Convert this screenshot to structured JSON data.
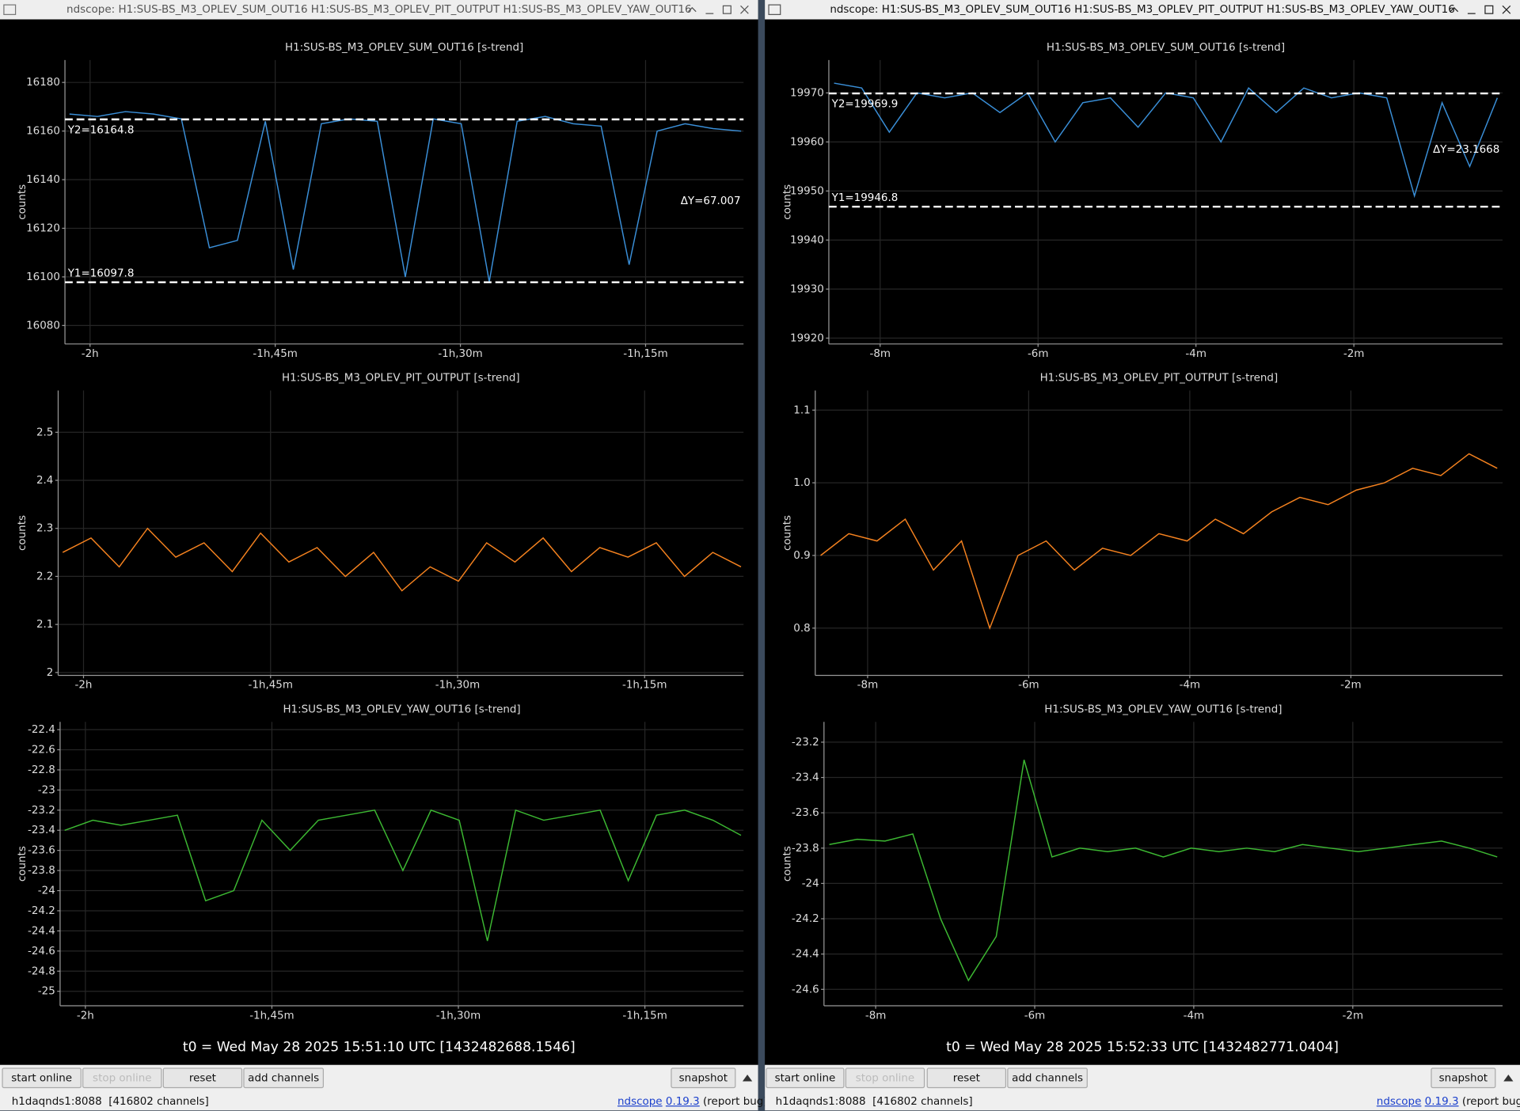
{
  "windows": [
    {
      "title": "ndscope: H1:SUS-BS_M3_OPLEV_SUM_OUT16 H1:SUS-BS_M3_OPLEV_PIT_OUTPUT H1:SUS-BS_M3_OPLEV_YAW_OUT16",
      "plots": [
        {
          "type": "line",
          "title": "H1:SUS-BS_M3_OPLEV_SUM_OUT16 [s-trend]",
          "ylabel": "counts",
          "grid": true,
          "x": [
            -7300,
            -7164,
            -7028,
            -6892,
            -6756,
            -6620,
            -6484,
            -6348,
            -6212,
            -6076,
            -5940,
            -5804,
            -5668,
            -5532,
            -5396,
            -5260,
            -5124,
            -4988,
            -4852,
            -4716,
            -4580,
            -4444,
            -4308,
            -4172,
            -4036
          ],
          "series": [
            {
              "color": "#3a8fd8",
              "values": [
                16167,
                16166,
                16168,
                16167,
                16165,
                16112,
                16115,
                16164,
                16103,
                16163,
                16165,
                16164,
                16100,
                16165,
                16163,
                16098,
                16164,
                16166,
                16163,
                16162,
                16105,
                16160,
                16163,
                16161,
                16160
              ]
            }
          ],
          "xlim": [
            -7322,
            -4024
          ],
          "xticks": [
            {
              "value": -7200,
              "label": "-2h"
            },
            {
              "value": -6300,
              "label": "-1h,45m"
            },
            {
              "value": -5400,
              "label": "-1h,30m"
            },
            {
              "value": -4500,
              "label": "-1h,15m"
            }
          ],
          "ylim": [
            16072.4,
            16189.2
          ],
          "yticks": [
            16080,
            16100,
            16120,
            16140,
            16160,
            16180
          ],
          "cursors": [
            {
              "label": "Y1=16097.8",
              "value": 16097.8
            },
            {
              "label": "Y2=16164.8",
              "value": 16164.8
            }
          ],
          "delta": "ΔY=67.007"
        },
        {
          "type": "line",
          "title": "H1:SUS-BS_M3_OPLEV_PIT_OUTPUT [s-trend]",
          "ylabel": "counts",
          "grid": true,
          "x": [
            -7300,
            -7164,
            -7028,
            -6892,
            -6756,
            -6620,
            -6484,
            -6348,
            -6212,
            -6076,
            -5940,
            -5804,
            -5668,
            -5532,
            -5396,
            -5260,
            -5124,
            -4988,
            -4852,
            -4716,
            -4580,
            -4444,
            -4308,
            -4172,
            -4036
          ],
          "series": [
            {
              "color": "#f5821f",
              "values": [
                2.25,
                2.28,
                2.22,
                2.3,
                2.24,
                2.27,
                2.21,
                2.29,
                2.23,
                2.26,
                2.2,
                2.25,
                2.17,
                2.22,
                2.19,
                2.27,
                2.23,
                2.28,
                2.21,
                2.26,
                2.24,
                2.27,
                2.2,
                2.25,
                2.22
              ]
            }
          ],
          "xlim": [
            -7322,
            -4024
          ],
          "xticks": [
            {
              "value": -7200,
              "label": "-2h"
            },
            {
              "value": -6300,
              "label": "-1h,45m"
            },
            {
              "value": -5400,
              "label": "-1h,30m"
            },
            {
              "value": -4500,
              "label": "-1h,15m"
            }
          ],
          "ylim": [
            1.994,
            2.587
          ],
          "yticks": [
            2,
            2.1,
            2.2,
            2.3,
            2.4,
            2.5
          ]
        },
        {
          "type": "line",
          "title": "H1:SUS-BS_M3_OPLEV_YAW_OUT16 [s-trend]",
          "ylabel": "counts",
          "grid": true,
          "x": [
            -7300,
            -7164,
            -7028,
            -6892,
            -6756,
            -6620,
            -6484,
            -6348,
            -6212,
            -6076,
            -5940,
            -5804,
            -5668,
            -5532,
            -5396,
            -5260,
            -5124,
            -4988,
            -4852,
            -4716,
            -4580,
            -4444,
            -4308,
            -4172,
            -4036
          ],
          "series": [
            {
              "color": "#3cb832",
              "values": [
                -23.4,
                -23.3,
                -23.35,
                -23.3,
                -23.25,
                -24.1,
                -24.0,
                -23.3,
                -23.6,
                -23.3,
                -23.25,
                -23.2,
                -23.8,
                -23.2,
                -23.3,
                -24.5,
                -23.2,
                -23.3,
                -23.25,
                -23.2,
                -23.9,
                -23.25,
                -23.2,
                -23.3,
                -23.45
              ]
            }
          ],
          "xlim": [
            -7322,
            -4024
          ],
          "xticks": [
            {
              "value": -7200,
              "label": "-2h"
            },
            {
              "value": -6300,
              "label": "-1h,45m"
            },
            {
              "value": -5400,
              "label": "-1h,30m"
            },
            {
              "value": -4500,
              "label": "-1h,15m"
            }
          ],
          "ylim": [
            -25.144,
            -22.323
          ],
          "yticks": [
            -22.4,
            -22.6,
            -22.8,
            -23,
            -23.2,
            -23.4,
            -23.6,
            -23.8,
            -24,
            -24.2,
            -24.4,
            -24.6,
            -24.8,
            -25
          ]
        }
      ],
      "t0": "t0 = Wed May 28 2025 15:51:10 UTC [1432482688.1546]",
      "buttons": [
        "start online",
        "stop online",
        "reset",
        "add channels",
        "snapshot"
      ],
      "status": "h1daqnds1:8088  [416802 channels]",
      "app": "ndscope",
      "version": "0.19.3",
      "report": "(report bug)"
    },
    {
      "title": "ndscope: H1:SUS-BS_M3_OPLEV_SUM_OUT16 H1:SUS-BS_M3_OPLEV_PIT_OUTPUT H1:SUS-BS_M3_OPLEV_YAW_OUT16",
      "plots": [
        {
          "type": "line",
          "title": "H1:SUS-BS_M3_OPLEV_SUM_OUT16 [s-trend]",
          "ylabel": "counts",
          "grid": true,
          "x": [
            -515,
            -494,
            -473,
            -452,
            -431,
            -410,
            -389,
            -368,
            -347,
            -326,
            -305,
            -284,
            -263,
            -242,
            -221,
            -200,
            -179,
            -158,
            -137,
            -116,
            -95,
            -74,
            -53,
            -32,
            -11
          ],
          "series": [
            {
              "color": "#3a8fd8",
              "values": [
                19972,
                19971,
                19962,
                19970,
                19969,
                19970,
                19966,
                19970,
                19960,
                19968,
                19969,
                19963,
                19970,
                19969,
                19960,
                19971,
                19966,
                19971,
                19969,
                19970,
                19969,
                19949,
                19968,
                19955,
                19969
              ]
            }
          ],
          "xlim": [
            -519,
            -7
          ],
          "xticks": [
            {
              "value": -480,
              "label": "-8m"
            },
            {
              "value": -360,
              "label": "-6m"
            },
            {
              "value": -240,
              "label": "-4m"
            },
            {
              "value": -120,
              "label": "-2m"
            }
          ],
          "ylim": [
            19918.8,
            19976.7
          ],
          "yticks": [
            19920,
            19930,
            19940,
            19950,
            19960,
            19970
          ],
          "cursors": [
            {
              "label": "Y1=19946.8",
              "value": 19946.8
            },
            {
              "label": "Y2=19969.9",
              "value": 19969.9
            }
          ],
          "delta": "ΔY=23.1668"
        },
        {
          "type": "line",
          "title": "H1:SUS-BS_M3_OPLEV_PIT_OUTPUT [s-trend]",
          "ylabel": "counts",
          "grid": true,
          "x": [
            -515,
            -494,
            -473,
            -452,
            -431,
            -410,
            -389,
            -368,
            -347,
            -326,
            -305,
            -284,
            -263,
            -242,
            -221,
            -200,
            -179,
            -158,
            -137,
            -116,
            -95,
            -74,
            -53,
            -32,
            -11
          ],
          "series": [
            {
              "color": "#f5821f",
              "values": [
                0.9,
                0.93,
                0.92,
                0.95,
                0.88,
                0.92,
                0.8,
                0.9,
                0.92,
                0.88,
                0.91,
                0.9,
                0.93,
                0.92,
                0.95,
                0.93,
                0.96,
                0.98,
                0.97,
                0.99,
                1.0,
                1.02,
                1.01,
                1.04,
                1.02
              ]
            }
          ],
          "xlim": [
            -519,
            -7
          ],
          "xticks": [
            {
              "value": -480,
              "label": "-8m"
            },
            {
              "value": -360,
              "label": "-6m"
            },
            {
              "value": -240,
              "label": "-4m"
            },
            {
              "value": -120,
              "label": "-2m"
            }
          ],
          "ylim": [
            0.735,
            1.127
          ],
          "yticks": [
            0.8,
            0.9,
            {
              "value": 1,
              "label": "1.0"
            },
            1.1
          ]
        },
        {
          "type": "line",
          "title": "H1:SUS-BS_M3_OPLEV_YAW_OUT16 [s-trend]",
          "ylabel": "counts",
          "grid": true,
          "x": [
            -515,
            -494,
            -473,
            -452,
            -431,
            -410,
            -389,
            -368,
            -347,
            -326,
            -305,
            -284,
            -263,
            -242,
            -221,
            -200,
            -179,
            -158,
            -137,
            -116,
            -95,
            -74,
            -53,
            -32,
            -11
          ],
          "series": [
            {
              "color": "#3cb832",
              "values": [
                -23.78,
                -23.75,
                -23.76,
                -23.72,
                -24.2,
                -24.55,
                -24.3,
                -23.3,
                -23.85,
                -23.8,
                -23.82,
                -23.8,
                -23.85,
                -23.8,
                -23.82,
                -23.8,
                -23.82,
                -23.78,
                -23.8,
                -23.82,
                -23.8,
                -23.78,
                -23.76,
                -23.8,
                -23.85
              ]
            }
          ],
          "xlim": [
            -519,
            -7
          ],
          "xticks": [
            {
              "value": -480,
              "label": "-8m"
            },
            {
              "value": -360,
              "label": "-6m"
            },
            {
              "value": -240,
              "label": "-4m"
            },
            {
              "value": -120,
              "label": "-2m"
            }
          ],
          "ylim": [
            -24.693,
            -23.085
          ],
          "yticks": [
            -23.2,
            -23.4,
            -23.6,
            -23.8,
            -24,
            -24.2,
            -24.4,
            -24.6
          ]
        }
      ],
      "t0": "t0 = Wed May 28 2025 15:52:33 UTC [1432482771.0404]",
      "buttons": [
        "start online",
        "stop online",
        "reset",
        "add channels",
        "snapshot"
      ],
      "status": "h1daqnds1:8088  [416802 channels]",
      "app": "ndscope",
      "version": "0.19.3",
      "report": "(report bug)"
    }
  ]
}
